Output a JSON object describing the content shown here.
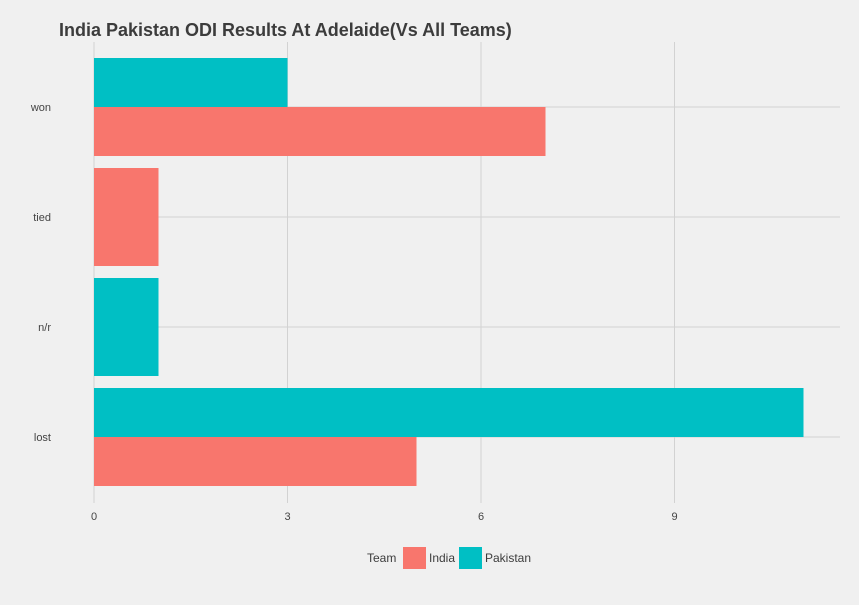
{
  "chart_data": {
    "type": "bar",
    "orientation": "horizontal",
    "title": "India Pakistan ODI Results At Adelaide(Vs All Teams)",
    "xlabel": "",
    "ylabel": "",
    "categories": [
      "won",
      "tied",
      "n/r",
      "lost"
    ],
    "series": [
      {
        "name": "India",
        "color": "#f8766d",
        "values": [
          7,
          1,
          0,
          5
        ]
      },
      {
        "name": "Pakistan",
        "color": "#00bfc4",
        "values": [
          3,
          0,
          1,
          11
        ]
      }
    ],
    "xlim": [
      0,
      11.5
    ],
    "xticks": [
      0,
      3,
      6,
      9
    ],
    "grid": true,
    "legend": {
      "title": "Team",
      "position": "bottom"
    }
  }
}
